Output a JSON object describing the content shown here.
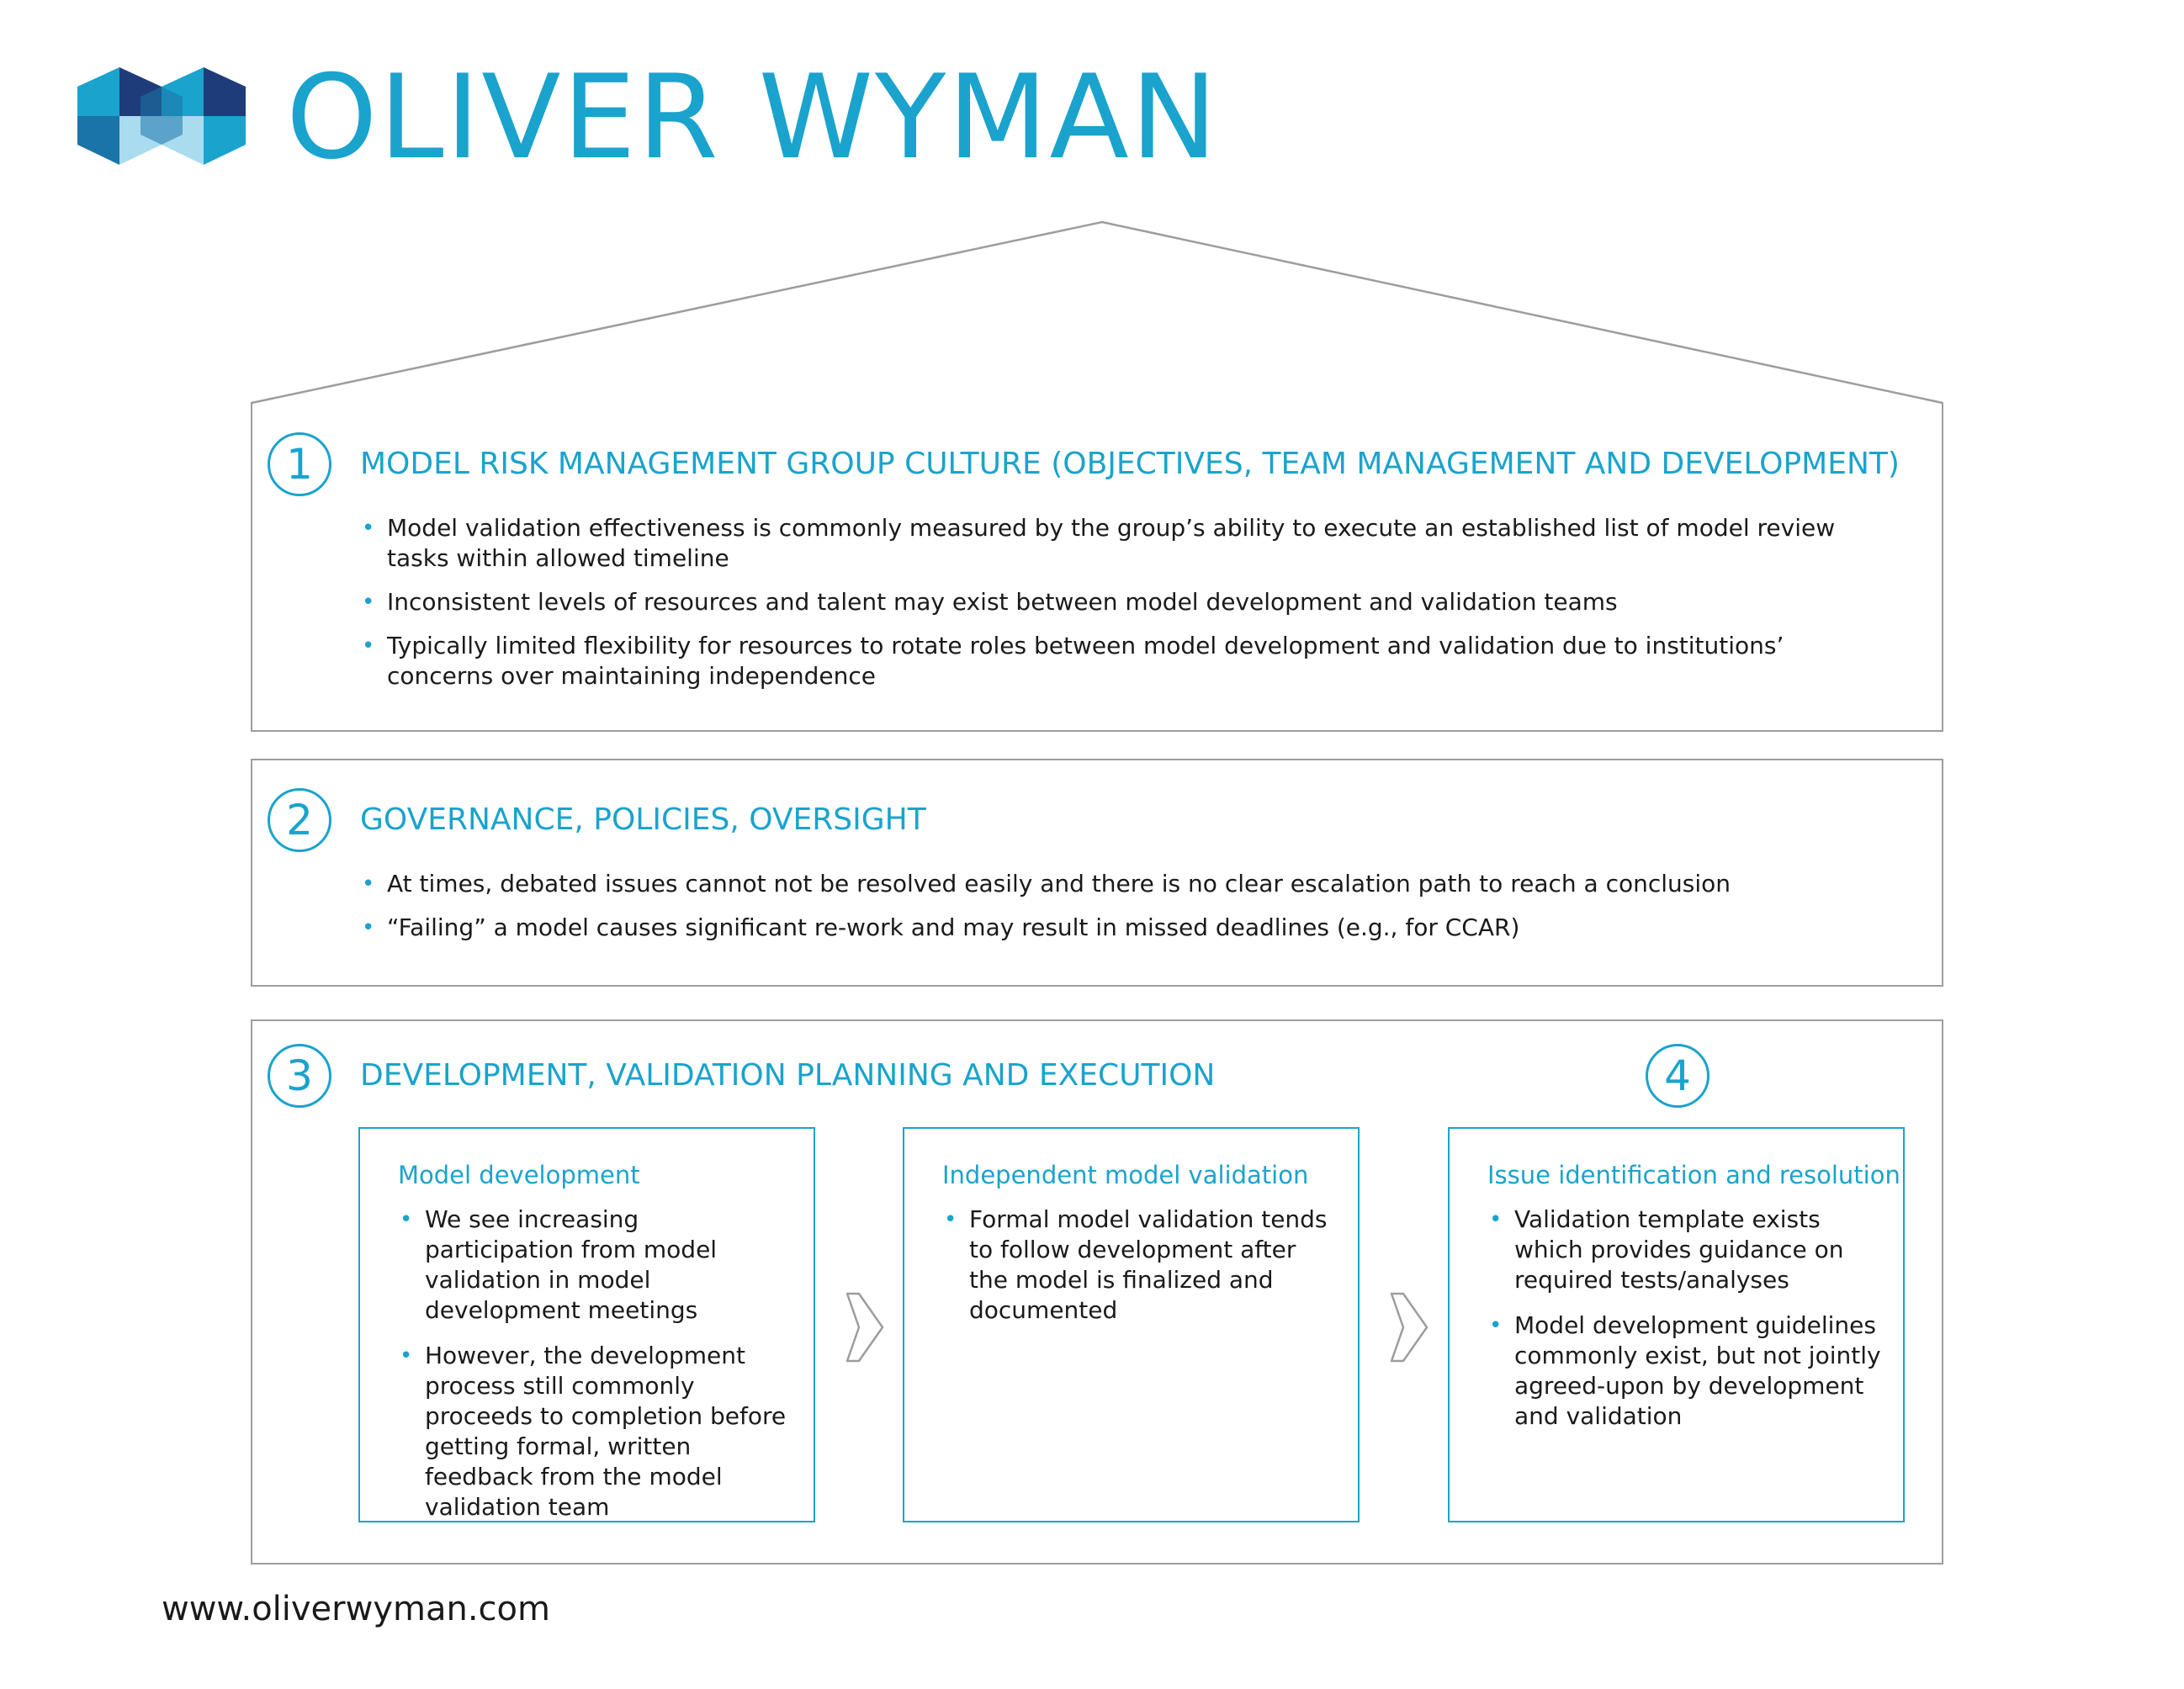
{
  "brand": {
    "name": "OLIVER WYMAN",
    "colors": {
      "primary": "#1aa3cd",
      "navy": "#1f3c7a",
      "mid": "#1b74a8",
      "light": "#a9dcef"
    }
  },
  "sections": [
    {
      "number": "1",
      "title": "MODEL RISK MANAGEMENT GROUP CULTURE (OBJECTIVES, TEAM MANAGEMENT AND DEVELOPMENT)",
      "bullets": [
        "Model validation effectiveness is commonly measured by the group’s ability to execute an established list of model review tasks within allowed timeline",
        "Inconsistent levels of resources and talent may exist between model development and validation teams",
        "Typically limited flexibility for resources to rotate roles between model development and validation due to institutions’ concerns over maintaining independence"
      ]
    },
    {
      "number": "2",
      "title": "GOVERNANCE, POLICIES, OVERSIGHT",
      "bullets": [
        "At times, debated issues cannot not be resolved easily and there is no clear escalation path to reach a conclusion",
        "“Failing” a model causes significant re-work and may result in missed deadlines (e.g., for CCAR)"
      ]
    },
    {
      "number": "3",
      "title": "DEVELOPMENT, VALIDATION PLANNING AND EXECUTION",
      "extra_number": "4"
    }
  ],
  "boxes": [
    {
      "title": "Model development",
      "bullets": [
        "We see increasing participation from model validation in model development meetings",
        "However, the development process still commonly proceeds to completion before getting formal, written feedback from the model validation team"
      ]
    },
    {
      "title": "Independent model validation",
      "bullets": [
        "Formal model validation tends to follow development after the model is finalized and documented"
      ]
    },
    {
      "title": "Issue identification and resolution",
      "bullets": [
        "Validation template exists which provides guidance on required tests/analyses",
        "Model development guidelines commonly exist, but not jointly agreed-upon by development and validation"
      ]
    }
  ],
  "footer": {
    "url": "www.oliverwyman.com"
  }
}
